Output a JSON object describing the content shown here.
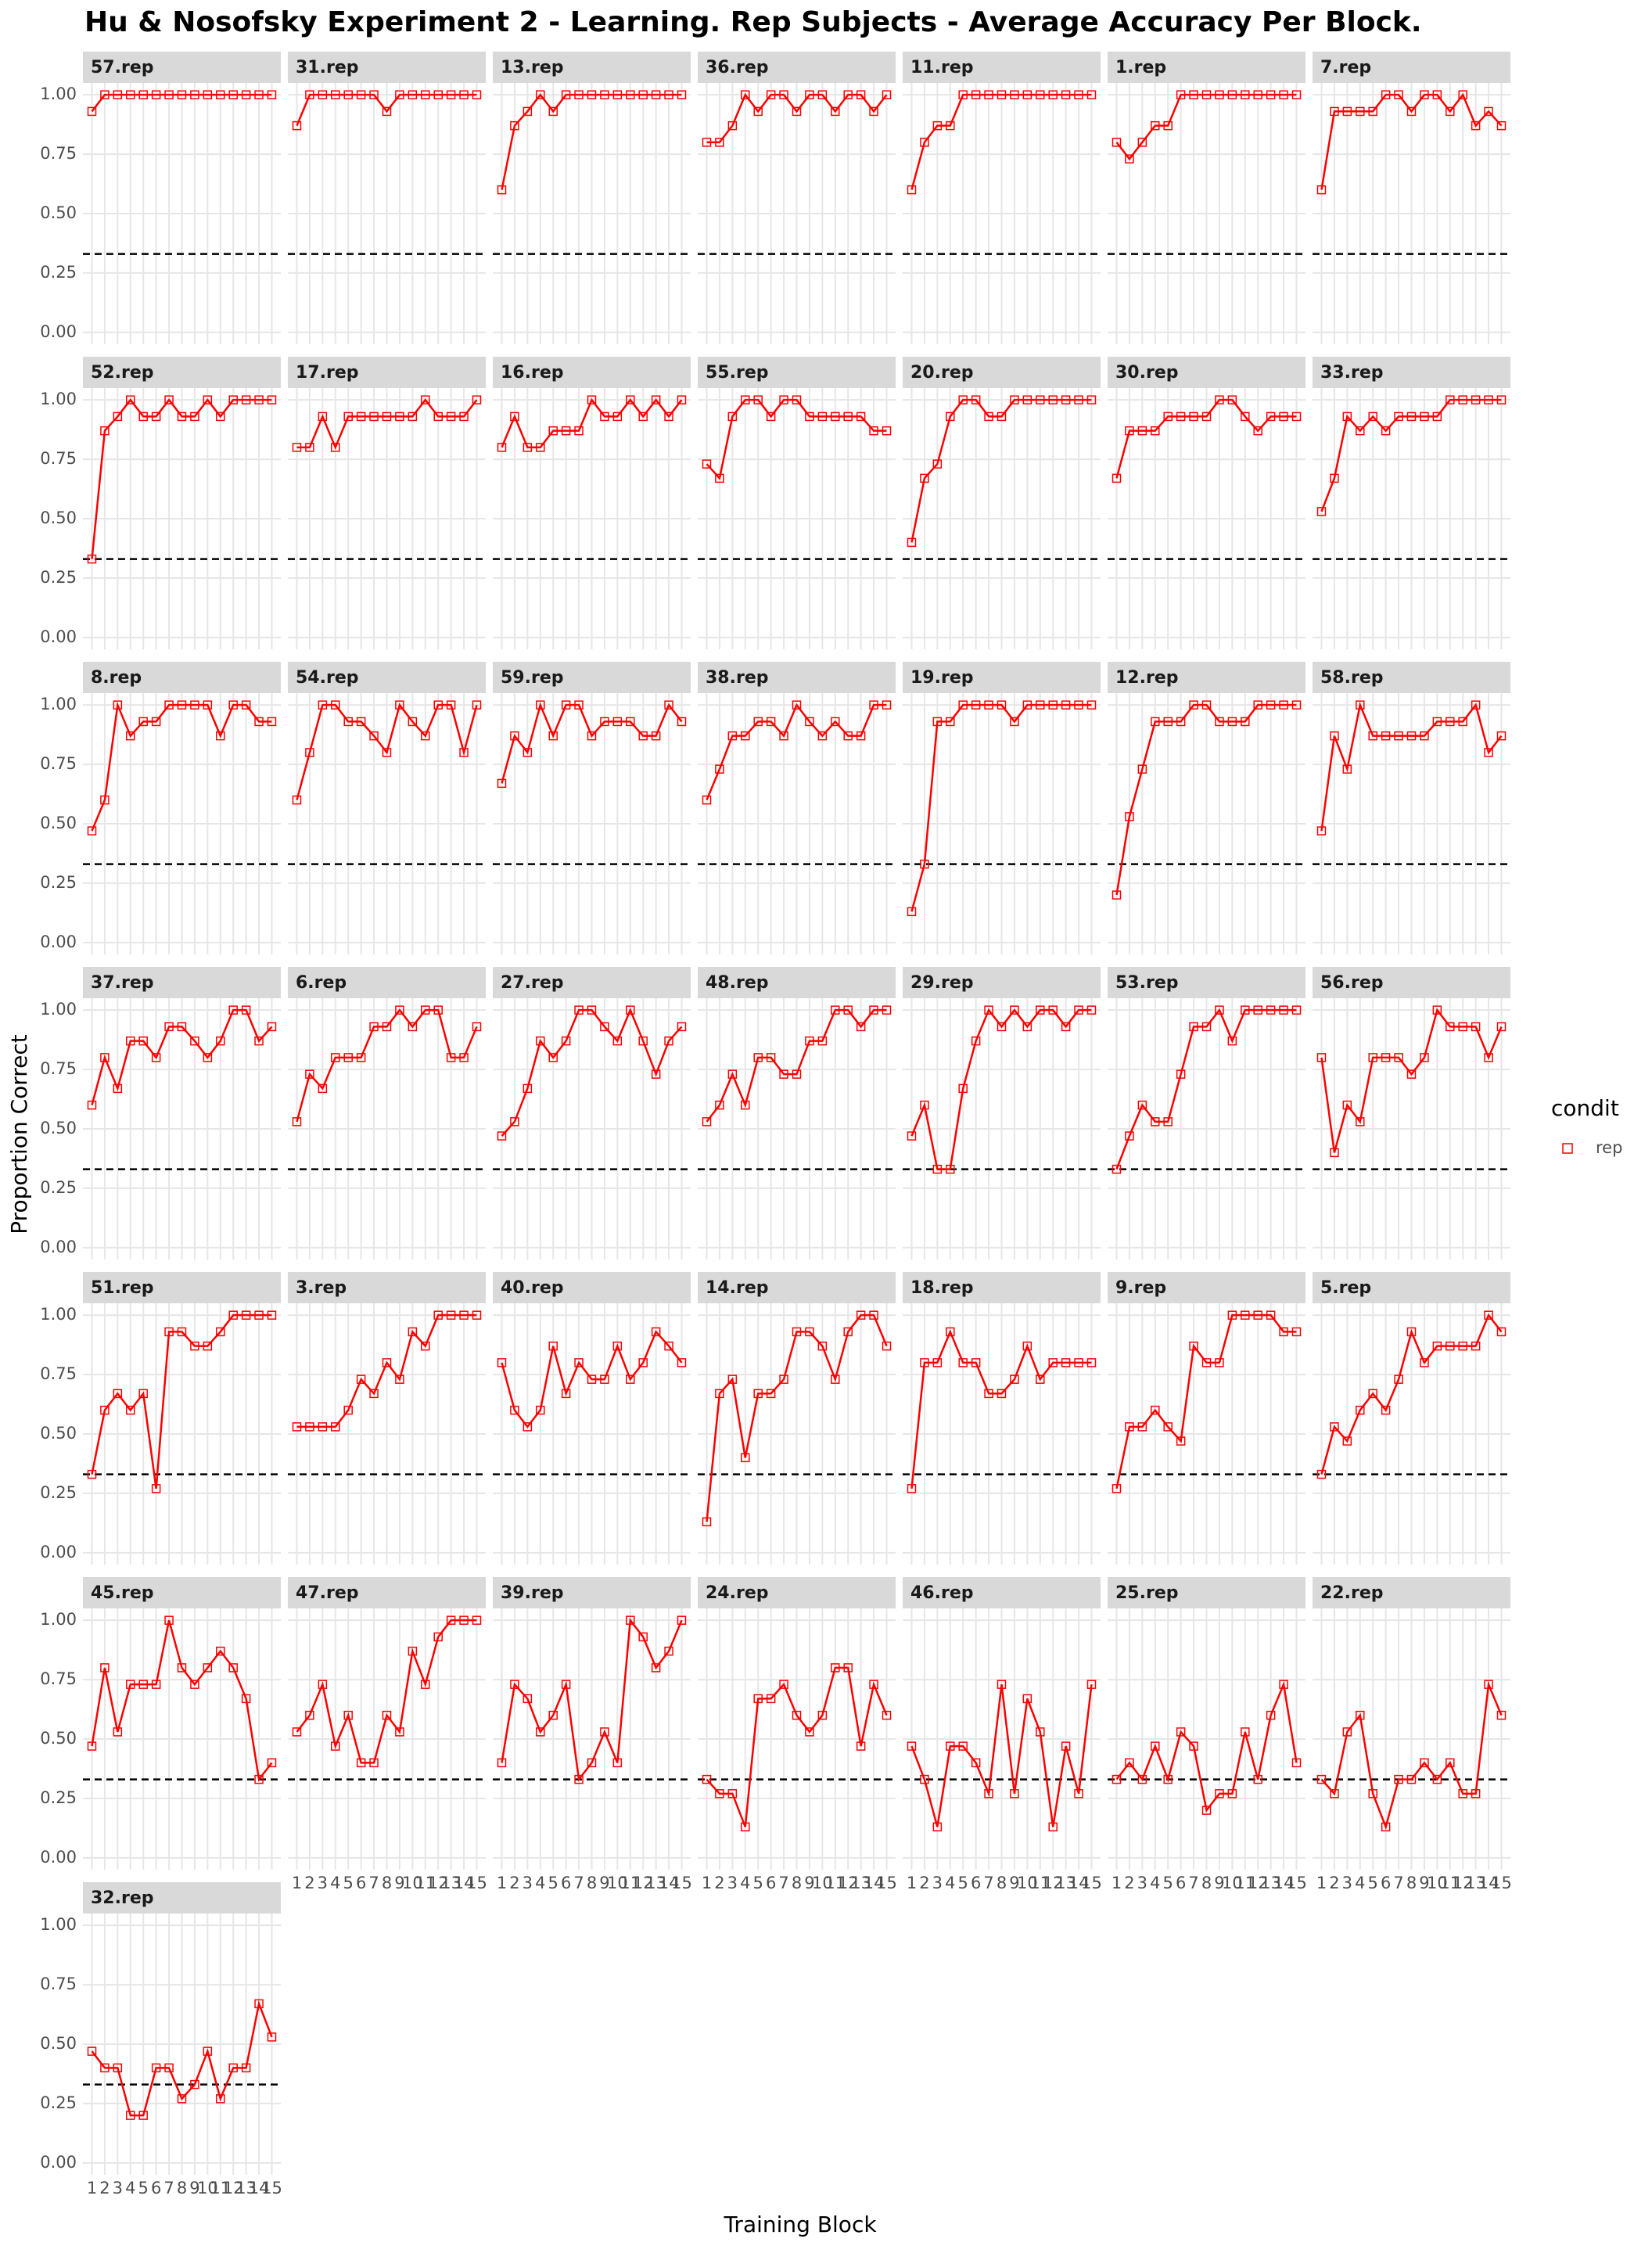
{
  "chart_data": {
    "type": "line",
    "title": "Hu & Nosofsky Experiment 2 - Learning. Rep Subjects - Average Accuracy Per Block.",
    "x_label": "Training Block",
    "y_label": "Proportion Correct",
    "legend": {
      "title": "condit",
      "labels": [
        "rep"
      ]
    },
    "color": "#ff0000",
    "hline": 0.33,
    "x": [
      1,
      2,
      3,
      4,
      5,
      6,
      7,
      8,
      9,
      10,
      11,
      12,
      13,
      14,
      15
    ],
    "xlim": [
      0.3,
      15.7
    ],
    "xticks": [
      1,
      2,
      3,
      4,
      5,
      6,
      7,
      8,
      9,
      10,
      11,
      12,
      13,
      14,
      15
    ],
    "ylim": [
      -0.05,
      1.05
    ],
    "yticks": [
      {
        "value": 0,
        "label": "0.00"
      },
      0.25,
      {
        "value": 0.5,
        "label": "0.50"
      },
      0.75,
      {
        "value": 1,
        "label": "1.00"
      }
    ],
    "grid": true,
    "series": [
      {
        "name": "57.rep",
        "values": [
          0.93,
          1,
          1,
          1,
          1,
          1,
          1,
          1,
          1,
          1,
          1,
          1,
          1,
          1,
          1
        ]
      },
      {
        "name": "31.rep",
        "values": [
          0.87,
          1,
          1,
          1,
          1,
          1,
          1,
          0.93,
          1,
          1,
          1,
          1,
          1,
          1,
          1
        ]
      },
      {
        "name": "13.rep",
        "values": [
          0.6,
          0.87,
          0.93,
          1,
          0.93,
          1,
          1,
          1,
          1,
          1,
          1,
          1,
          1,
          1,
          1
        ]
      },
      {
        "name": "36.rep",
        "values": [
          0.8,
          0.8,
          0.87,
          1,
          0.93,
          1,
          1,
          0.93,
          1,
          1,
          0.93,
          1,
          1,
          0.93,
          1
        ]
      },
      {
        "name": "11.rep",
        "values": [
          0.6,
          0.8,
          0.87,
          0.87,
          1,
          1,
          1,
          1,
          1,
          1,
          1,
          1,
          1,
          1,
          1
        ]
      },
      {
        "name": "1.rep",
        "values": [
          0.8,
          0.73,
          0.8,
          0.87,
          0.87,
          1,
          1,
          1,
          1,
          1,
          1,
          1,
          1,
          1,
          1
        ]
      },
      {
        "name": "7.rep",
        "values": [
          0.6,
          0.93,
          0.93,
          0.93,
          0.93,
          1,
          1,
          0.93,
          1,
          1,
          0.93,
          1,
          0.87,
          0.93,
          0.87
        ]
      },
      {
        "name": "52.rep",
        "values": [
          0.33,
          0.87,
          0.93,
          1,
          0.93,
          0.93,
          1,
          0.93,
          0.93,
          1,
          0.93,
          1,
          1,
          1,
          1
        ]
      },
      {
        "name": "17.rep",
        "values": [
          0.8,
          0.8,
          0.93,
          0.8,
          0.93,
          0.93,
          0.93,
          0.93,
          0.93,
          0.93,
          1,
          0.93,
          0.93,
          0.93,
          1
        ]
      },
      {
        "name": "16.rep",
        "values": [
          0.8,
          0.93,
          0.8,
          0.8,
          0.87,
          0.87,
          0.87,
          1,
          0.93,
          0.93,
          1,
          0.93,
          1,
          0.93,
          1
        ]
      },
      {
        "name": "55.rep",
        "values": [
          0.73,
          0.67,
          0.93,
          1,
          1,
          0.93,
          1,
          1,
          0.93,
          0.93,
          0.93,
          0.93,
          0.93,
          0.87,
          0.87
        ]
      },
      {
        "name": "20.rep",
        "values": [
          0.4,
          0.67,
          0.73,
          0.93,
          1,
          1,
          0.93,
          0.93,
          1,
          1,
          1,
          1,
          1,
          1,
          1
        ]
      },
      {
        "name": "30.rep",
        "values": [
          0.67,
          0.87,
          0.87,
          0.87,
          0.93,
          0.93,
          0.93,
          0.93,
          1,
          1,
          0.93,
          0.87,
          0.93,
          0.93,
          0.93
        ]
      },
      {
        "name": "33.rep",
        "values": [
          0.53,
          0.67,
          0.93,
          0.87,
          0.93,
          0.87,
          0.93,
          0.93,
          0.93,
          0.93,
          1,
          1,
          1,
          1,
          1
        ]
      },
      {
        "name": "8.rep",
        "values": [
          0.47,
          0.6,
          1,
          0.87,
          0.93,
          0.93,
          1,
          1,
          1,
          1,
          0.87,
          1,
          1,
          0.93,
          0.93
        ]
      },
      {
        "name": "54.rep",
        "values": [
          0.6,
          0.8,
          1,
          1,
          0.93,
          0.93,
          0.87,
          0.8,
          1,
          0.93,
          0.87,
          1,
          1,
          0.8,
          1
        ]
      },
      {
        "name": "59.rep",
        "values": [
          0.67,
          0.87,
          0.8,
          1,
          0.87,
          1,
          1,
          0.87,
          0.93,
          0.93,
          0.93,
          0.87,
          0.87,
          1,
          0.93
        ]
      },
      {
        "name": "38.rep",
        "values": [
          0.6,
          0.73,
          0.87,
          0.87,
          0.93,
          0.93,
          0.87,
          1,
          0.93,
          0.87,
          0.93,
          0.87,
          0.87,
          1,
          1
        ]
      },
      {
        "name": "19.rep",
        "values": [
          0.13,
          0.33,
          0.93,
          0.93,
          1,
          1,
          1,
          1,
          0.93,
          1,
          1,
          1,
          1,
          1,
          1
        ]
      },
      {
        "name": "12.rep",
        "values": [
          0.2,
          0.53,
          0.73,
          0.93,
          0.93,
          0.93,
          1,
          1,
          0.93,
          0.93,
          0.93,
          1,
          1,
          1,
          1
        ]
      },
      {
        "name": "58.rep",
        "values": [
          0.47,
          0.87,
          0.73,
          1,
          0.87,
          0.87,
          0.87,
          0.87,
          0.87,
          0.93,
          0.93,
          0.93,
          1,
          0.8,
          0.87
        ]
      },
      {
        "name": "37.rep",
        "values": [
          0.6,
          0.8,
          0.67,
          0.87,
          0.87,
          0.8,
          0.93,
          0.93,
          0.87,
          0.8,
          0.87,
          1,
          1,
          0.87,
          0.93
        ]
      },
      {
        "name": "6.rep",
        "values": [
          0.53,
          0.73,
          0.67,
          0.8,
          0.8,
          0.8,
          0.93,
          0.93,
          1,
          0.93,
          1,
          1,
          0.8,
          0.8,
          0.93
        ]
      },
      {
        "name": "27.rep",
        "values": [
          0.47,
          0.53,
          0.67,
          0.87,
          0.8,
          0.87,
          1,
          1,
          0.93,
          0.87,
          1,
          0.87,
          0.73,
          0.87,
          0.93
        ]
      },
      {
        "name": "48.rep",
        "values": [
          0.53,
          0.6,
          0.73,
          0.6,
          0.8,
          0.8,
          0.73,
          0.73,
          0.87,
          0.87,
          1,
          1,
          0.93,
          1,
          1
        ]
      },
      {
        "name": "29.rep",
        "values": [
          0.47,
          0.6,
          0.33,
          0.33,
          0.67,
          0.87,
          1,
          0.93,
          1,
          0.93,
          1,
          1,
          0.93,
          1,
          1
        ]
      },
      {
        "name": "53.rep",
        "values": [
          0.33,
          0.47,
          0.6,
          0.53,
          0.53,
          0.73,
          0.93,
          0.93,
          1,
          0.87,
          1,
          1,
          1,
          1,
          1
        ]
      },
      {
        "name": "56.rep",
        "values": [
          0.8,
          0.4,
          0.6,
          0.53,
          0.8,
          0.8,
          0.8,
          0.73,
          0.8,
          1,
          0.93,
          0.93,
          0.93,
          0.8,
          0.93
        ]
      },
      {
        "name": "51.rep",
        "values": [
          0.33,
          0.6,
          0.67,
          0.6,
          0.67,
          0.27,
          0.93,
          0.93,
          0.87,
          0.87,
          0.93,
          1,
          1,
          1,
          1
        ]
      },
      {
        "name": "3.rep",
        "values": [
          0.53,
          0.53,
          0.53,
          0.53,
          0.6,
          0.73,
          0.67,
          0.8,
          0.73,
          0.93,
          0.87,
          1,
          1,
          1,
          1
        ]
      },
      {
        "name": "40.rep",
        "values": [
          0.8,
          0.6,
          0.53,
          0.6,
          0.87,
          0.67,
          0.8,
          0.73,
          0.73,
          0.87,
          0.73,
          0.8,
          0.93,
          0.87,
          0.8
        ]
      },
      {
        "name": "14.rep",
        "values": [
          0.13,
          0.67,
          0.73,
          0.4,
          0.67,
          0.67,
          0.73,
          0.93,
          0.93,
          0.87,
          0.73,
          0.93,
          1,
          1,
          0.87
        ]
      },
      {
        "name": "18.rep",
        "values": [
          0.27,
          0.8,
          0.8,
          0.93,
          0.8,
          0.8,
          0.67,
          0.67,
          0.73,
          0.87,
          0.73,
          0.8,
          0.8,
          0.8,
          0.8
        ]
      },
      {
        "name": "9.rep",
        "values": [
          0.27,
          0.53,
          0.53,
          0.6,
          0.53,
          0.47,
          0.87,
          0.8,
          0.8,
          1,
          1,
          1,
          1,
          0.93,
          0.93
        ]
      },
      {
        "name": "5.rep",
        "values": [
          0.33,
          0.53,
          0.47,
          0.6,
          0.67,
          0.6,
          0.73,
          0.93,
          0.8,
          0.87,
          0.87,
          0.87,
          0.87,
          1,
          0.93
        ]
      },
      {
        "name": "45.rep",
        "values": [
          0.47,
          0.8,
          0.53,
          0.73,
          0.73,
          0.73,
          1,
          0.8,
          0.73,
          0.8,
          0.87,
          0.8,
          0.67,
          0.33,
          0.4
        ]
      },
      {
        "name": "47.rep",
        "values": [
          0.53,
          0.6,
          0.73,
          0.47,
          0.6,
          0.4,
          0.4,
          0.6,
          0.53,
          0.87,
          0.73,
          0.93,
          1,
          1,
          1
        ]
      },
      {
        "name": "39.rep",
        "values": [
          0.4,
          0.73,
          0.67,
          0.53,
          0.6,
          0.73,
          0.33,
          0.4,
          0.53,
          0.4,
          1,
          0.93,
          0.8,
          0.87,
          1
        ]
      },
      {
        "name": "24.rep",
        "values": [
          0.33,
          0.27,
          0.27,
          0.13,
          0.67,
          0.67,
          0.73,
          0.6,
          0.53,
          0.6,
          0.8,
          0.8,
          0.47,
          0.73,
          0.6
        ]
      },
      {
        "name": "46.rep",
        "values": [
          0.47,
          0.33,
          0.13,
          0.47,
          0.47,
          0.4,
          0.27,
          0.73,
          0.27,
          0.67,
          0.53,
          0.13,
          0.47,
          0.27,
          0.73
        ]
      },
      {
        "name": "25.rep",
        "values": [
          0.33,
          0.4,
          0.33,
          0.47,
          0.33,
          0.53,
          0.47,
          0.2,
          0.27,
          0.27,
          0.53,
          0.33,
          0.6,
          0.73,
          0.4
        ]
      },
      {
        "name": "22.rep",
        "values": [
          0.33,
          0.27,
          0.53,
          0.6,
          0.27,
          0.13,
          0.33,
          0.33,
          0.4,
          0.33,
          0.4,
          0.27,
          0.27,
          0.73,
          0.6
        ]
      },
      {
        "name": "32.rep",
        "values": [
          0.47,
          0.4,
          0.4,
          0.2,
          0.2,
          0.4,
          0.4,
          0.27,
          0.33,
          0.47,
          0.27,
          0.4,
          0.4,
          0.67,
          0.53
        ]
      }
    ]
  }
}
